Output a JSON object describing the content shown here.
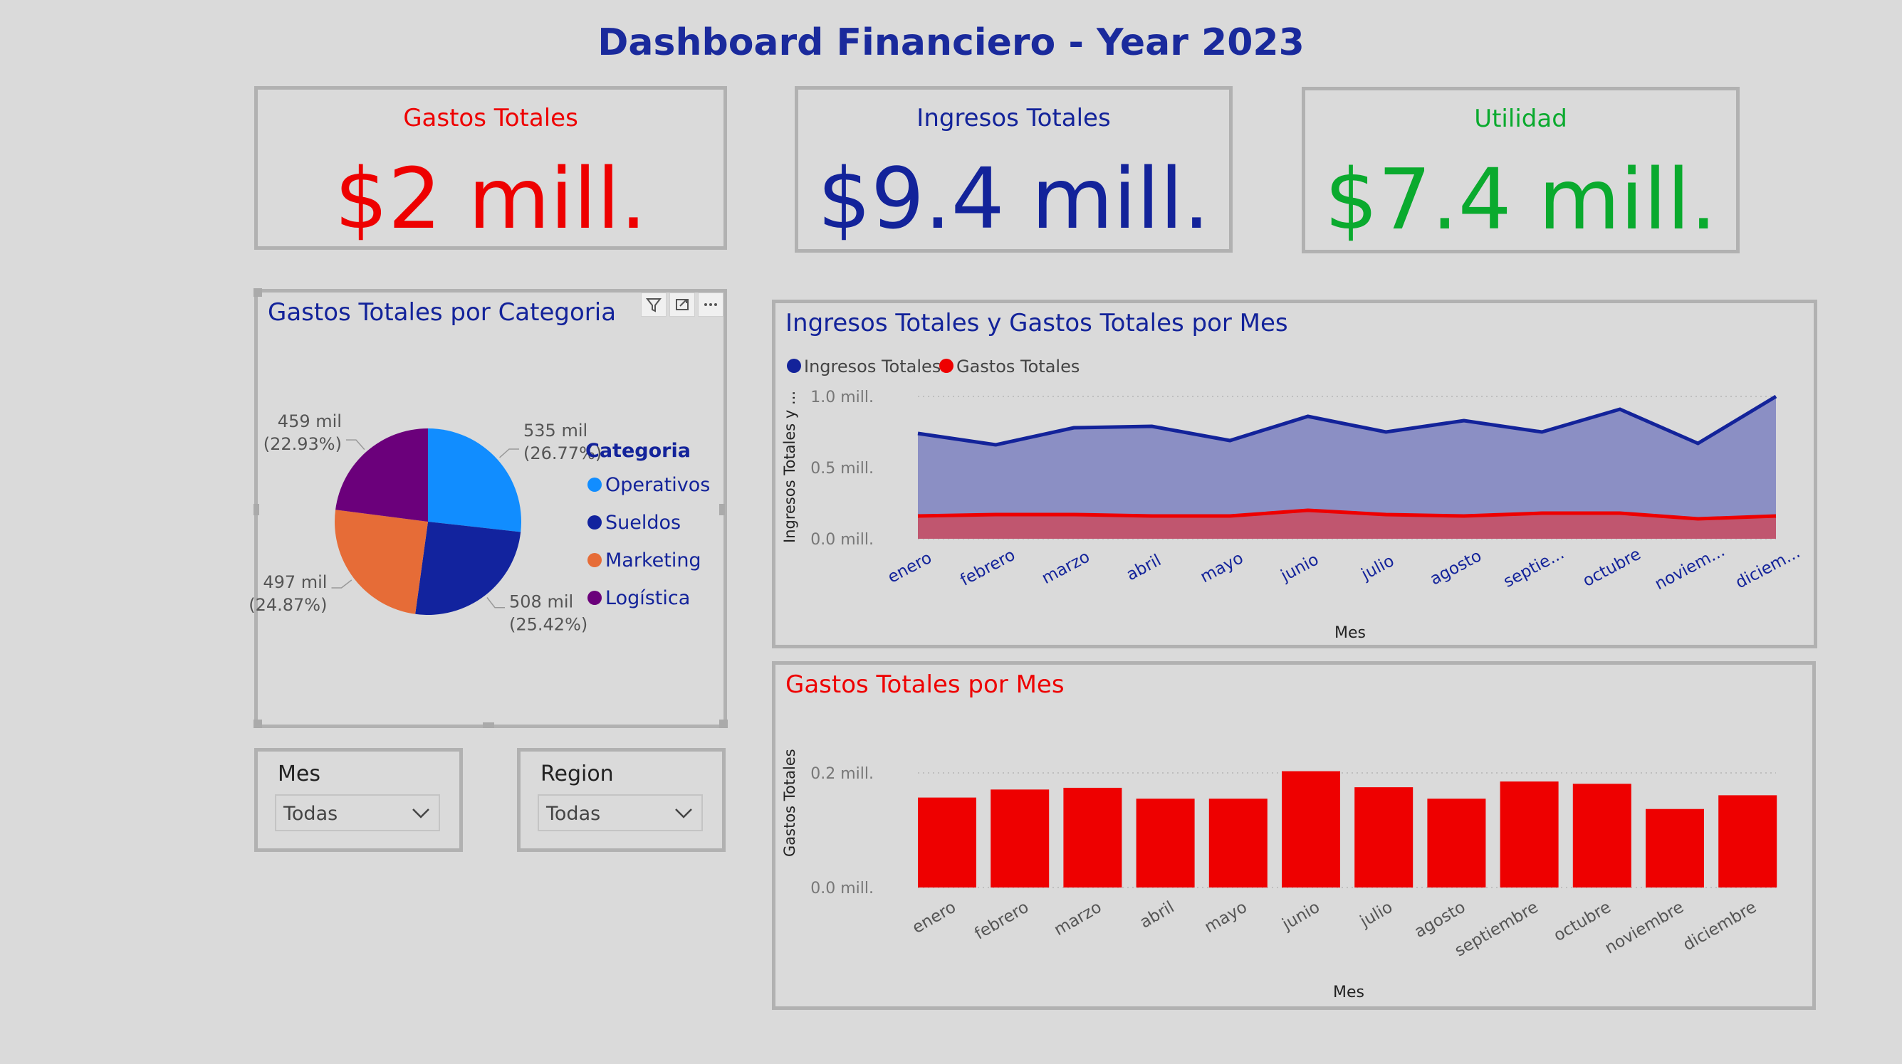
{
  "page": {
    "title": "Dashboard Financiero - Year 2023"
  },
  "colors": {
    "title": "#1a2a9c",
    "gastos": "#ee0000",
    "ingresos": "#13239a",
    "utilidad": "#0aaa2e",
    "operativos": "#118dff",
    "sueldos": "#12239e",
    "marketing": "#e66c37",
    "logistica": "#6b007b",
    "ingresos_area": "#8b8fc4",
    "gastos_area": "#c0566f"
  },
  "kpis": {
    "gastos": {
      "label": "Gastos Totales",
      "value": "$2 mill."
    },
    "ingresos": {
      "label": "Ingresos Totales",
      "value": "$9.4 mill."
    },
    "utilidad": {
      "label": "Utilidad",
      "value": "$7.4 mill."
    }
  },
  "pie_panel": {
    "title": "Gastos Totales por Categoria",
    "legend_title": "Categoria",
    "icons": [
      "filter-icon",
      "focus-mode-icon",
      "more-options-icon"
    ]
  },
  "line_panel": {
    "title": "Ingresos Totales y Gastos Totales por Mes",
    "xlabel": "Mes",
    "ylabel": "Ingresos Totales y ...",
    "legend": [
      "Ingresos Totales",
      "Gastos Totales"
    ],
    "x_tick_labels": [
      "enero",
      "febrero",
      "marzo",
      "abril",
      "mayo",
      "junio",
      "julio",
      "agosto",
      "septie...",
      "octubre",
      "noviem...",
      "diciem..."
    ],
    "y_tick_labels": [
      "0.0 mill.",
      "0.5 mill.",
      "1.0 mill."
    ]
  },
  "bar_panel": {
    "title": "Gastos Totales por Mes",
    "xlabel": "Mes",
    "ylabel": "Gastos Totales",
    "x_tick_labels": [
      "enero",
      "febrero",
      "marzo",
      "abril",
      "mayo",
      "junio",
      "julio",
      "agosto",
      "septiembre",
      "octubre",
      "noviembre",
      "diciembre"
    ],
    "y_tick_labels": [
      "0.0 mill.",
      "0.2 mill."
    ]
  },
  "slicers": {
    "mes": {
      "label": "Mes",
      "value": "Todas"
    },
    "region": {
      "label": "Region",
      "value": "Todas"
    }
  },
  "chart_data": [
    {
      "type": "pie",
      "title": "Gastos Totales por Categoria",
      "legend_title": "Categoria",
      "legend_position": "right",
      "slices": [
        {
          "name": "Operativos",
          "value": 535,
          "value_label": "535 mil",
          "pct_label": "(26.77%)"
        },
        {
          "name": "Sueldos",
          "value": 508,
          "value_label": "508 mil",
          "pct_label": "(25.42%)"
        },
        {
          "name": "Marketing",
          "value": 497,
          "value_label": "497 mil",
          "pct_label": "(24.87%)"
        },
        {
          "name": "Logística",
          "value": 459,
          "value_label": "459 mil",
          "pct_label": "(22.93%)"
        }
      ]
    },
    {
      "type": "area",
      "title": "Ingresos Totales y Gastos Totales por Mes",
      "xlabel": "Mes",
      "ylabel": "Ingresos Totales y ...",
      "ylim": [
        0,
        1.0
      ],
      "grid": true,
      "legend_position": "top-left",
      "categories": [
        "enero",
        "febrero",
        "marzo",
        "abril",
        "mayo",
        "junio",
        "julio",
        "agosto",
        "septiembre",
        "octubre",
        "noviembre",
        "diciembre"
      ],
      "series": [
        {
          "name": "Ingresos Totales",
          "values": [
            0.74,
            0.66,
            0.78,
            0.79,
            0.69,
            0.86,
            0.75,
            0.83,
            0.75,
            0.91,
            0.67,
            1.0
          ]
        },
        {
          "name": "Gastos Totales",
          "values": [
            0.16,
            0.17,
            0.17,
            0.16,
            0.16,
            0.2,
            0.17,
            0.16,
            0.18,
            0.18,
            0.14,
            0.16
          ]
        }
      ]
    },
    {
      "type": "bar",
      "title": "Gastos Totales por Mes",
      "xlabel": "Mes",
      "ylabel": "Gastos Totales",
      "ylim": [
        0,
        0.25
      ],
      "grid": true,
      "categories": [
        "enero",
        "febrero",
        "marzo",
        "abril",
        "mayo",
        "junio",
        "julio",
        "agosto",
        "septiembre",
        "octubre",
        "noviembre",
        "diciembre"
      ],
      "values": [
        0.157,
        0.171,
        0.174,
        0.155,
        0.155,
        0.203,
        0.175,
        0.155,
        0.185,
        0.181,
        0.137,
        0.161
      ]
    }
  ]
}
